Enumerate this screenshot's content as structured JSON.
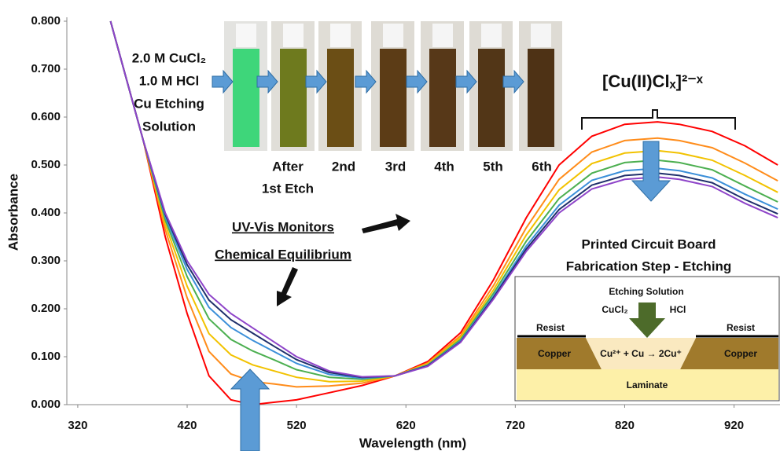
{
  "chart_data": {
    "type": "line",
    "x_label": "Wavelength (nm)",
    "y_label": "Absorbance",
    "x": [
      350,
      380,
      400,
      420,
      440,
      460,
      480,
      500,
      520,
      550,
      580,
      610,
      640,
      670,
      700,
      730,
      760,
      790,
      820,
      850,
      870,
      900,
      930,
      960
    ],
    "series": [
      {
        "color": "#ff0000",
        "values": [
          0.8,
          0.55,
          0.35,
          0.19,
          0.06,
          0.01,
          0.0,
          0.005,
          0.01,
          0.025,
          0.04,
          0.06,
          0.09,
          0.15,
          0.26,
          0.39,
          0.5,
          0.56,
          0.585,
          0.59,
          0.585,
          0.57,
          0.54,
          0.5
        ]
      },
      {
        "color": "#ff8c1a",
        "values": [
          0.8,
          0.55,
          0.365,
          0.223,
          0.111,
          0.064,
          0.048,
          0.043,
          0.037,
          0.039,
          0.045,
          0.06,
          0.087,
          0.144,
          0.248,
          0.369,
          0.47,
          0.527,
          0.551,
          0.556,
          0.551,
          0.536,
          0.504,
          0.467
        ]
      },
      {
        "color": "#f2c200",
        "values": [
          0.8,
          0.55,
          0.376,
          0.247,
          0.148,
          0.104,
          0.083,
          0.07,
          0.057,
          0.048,
          0.049,
          0.06,
          0.085,
          0.14,
          0.239,
          0.354,
          0.448,
          0.503,
          0.525,
          0.53,
          0.525,
          0.51,
          0.478,
          0.443
        ]
      },
      {
        "color": "#4caf50",
        "values": [
          0.8,
          0.55,
          0.385,
          0.267,
          0.179,
          0.136,
          0.112,
          0.093,
          0.073,
          0.057,
          0.053,
          0.06,
          0.083,
          0.136,
          0.232,
          0.341,
          0.43,
          0.483,
          0.505,
          0.51,
          0.505,
          0.49,
          0.456,
          0.423
        ]
      },
      {
        "color": "#3b8fd9",
        "values": [
          0.8,
          0.55,
          0.392,
          0.282,
          0.203,
          0.161,
          0.134,
          0.11,
          0.086,
          0.063,
          0.055,
          0.06,
          0.082,
          0.133,
          0.226,
          0.331,
          0.416,
          0.468,
          0.488,
          0.493,
          0.488,
          0.473,
          0.439,
          0.408
        ]
      },
      {
        "color": "#1f2f6b",
        "values": [
          0.8,
          0.55,
          0.397,
          0.292,
          0.218,
          0.177,
          0.149,
          0.121,
          0.094,
          0.067,
          0.057,
          0.06,
          0.081,
          0.131,
          0.223,
          0.325,
          0.407,
          0.458,
          0.478,
          0.483,
          0.478,
          0.463,
          0.428,
          0.398
        ]
      },
      {
        "color": "#8e44c9",
        "values": [
          0.8,
          0.55,
          0.4,
          0.3,
          0.23,
          0.19,
          0.16,
          0.13,
          0.1,
          0.07,
          0.058,
          0.06,
          0.08,
          0.13,
          0.22,
          0.32,
          0.4,
          0.45,
          0.47,
          0.475,
          0.47,
          0.455,
          0.42,
          0.39
        ]
      }
    ],
    "xlim": [
      310,
      962
    ],
    "ylim": [
      0,
      0.8
    ],
    "xticks": [
      320,
      420,
      520,
      620,
      720,
      820,
      920
    ],
    "yticks": [
      {
        "value": 0,
        "label": "0.000"
      },
      {
        "value": 0.1,
        "label": "0.100"
      },
      {
        "value": 0.2,
        "label": "0.200"
      },
      {
        "value": 0.3,
        "label": "0.300"
      },
      {
        "value": 0.4,
        "label": "0.400"
      },
      {
        "value": 0.5,
        "label": "0.500"
      },
      {
        "value": 0.6,
        "label": "0.600"
      },
      {
        "value": 0.7,
        "label": "0.700"
      },
      {
        "value": 0.8,
        "label": "0.800"
      }
    ],
    "annotations": [
      "2.0 M CuCl₂",
      "1.0 M HCl",
      "Cu Etching",
      "Solution",
      "After",
      "1st Etch",
      "2nd",
      "3rd",
      "4th",
      "5th",
      "6th",
      "[Cu(II)Clₓ]²⁻ˣ",
      "UV-Vis Monitors",
      "Chemical Equilibrium",
      "Printed Circuit Board",
      "Fabrication Step - Etching",
      "Etching Solution",
      "CuCl₂",
      "HCl",
      "Resist",
      "Resist",
      "Copper",
      "Cu²⁺ + Cu → 2Cu⁺",
      "Copper",
      "Laminate"
    ]
  }
}
